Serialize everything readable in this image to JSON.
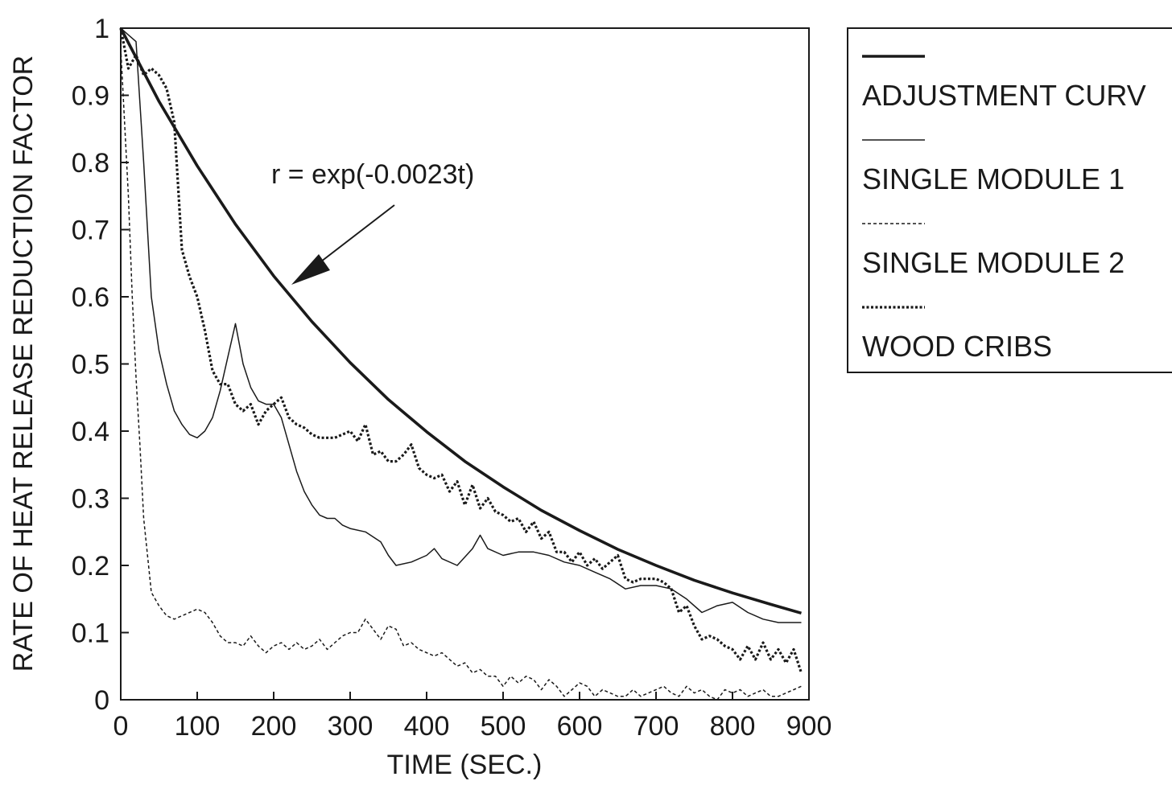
{
  "chart_data": {
    "type": "line",
    "xlabel": "TIME (SEC.)",
    "ylabel": "RATE OF HEAT RELEASE REDUCTION FACTOR",
    "xlim": [
      0,
      900
    ],
    "ylim": [
      0,
      1
    ],
    "x_ticks": [
      "0",
      "100",
      "200",
      "300",
      "400",
      "500",
      "600",
      "700",
      "800",
      "900"
    ],
    "y_ticks": [
      "0",
      "0.1",
      "0.2",
      "0.3",
      "0.4",
      "0.5",
      "0.6",
      "0.7",
      "0.8",
      "0.9",
      "1"
    ],
    "grid": false,
    "legend_position": "right",
    "annotation": "r = exp(-0.0023t)",
    "series": [
      {
        "name": "ADJUSTMENT CURV",
        "style": "thick-solid",
        "formula": "exp(-0.0023t)",
        "x": [
          0,
          50,
          100,
          150,
          200,
          250,
          300,
          350,
          400,
          450,
          500,
          550,
          600,
          650,
          700,
          750,
          800,
          850,
          890
        ],
        "y": [
          1.0,
          0.891,
          0.795,
          0.708,
          0.631,
          0.563,
          0.502,
          0.447,
          0.399,
          0.355,
          0.317,
          0.282,
          0.252,
          0.224,
          0.2,
          0.178,
          0.159,
          0.142,
          0.129
        ]
      },
      {
        "name": "SINGLE MODULE 1",
        "style": "thin-solid",
        "x": [
          0,
          10,
          20,
          30,
          40,
          50,
          60,
          70,
          80,
          90,
          100,
          110,
          120,
          130,
          140,
          150,
          160,
          170,
          180,
          190,
          200,
          210,
          220,
          230,
          240,
          250,
          260,
          270,
          280,
          290,
          300,
          320,
          340,
          350,
          360,
          380,
          400,
          410,
          420,
          440,
          460,
          470,
          480,
          500,
          520,
          540,
          560,
          580,
          600,
          620,
          640,
          660,
          680,
          700,
          720,
          740,
          760,
          780,
          800,
          820,
          840,
          860,
          880,
          890
        ],
        "y": [
          1.0,
          0.99,
          0.98,
          0.8,
          0.6,
          0.52,
          0.47,
          0.43,
          0.41,
          0.395,
          0.39,
          0.4,
          0.42,
          0.46,
          0.51,
          0.56,
          0.5,
          0.465,
          0.445,
          0.44,
          0.44,
          0.42,
          0.38,
          0.34,
          0.31,
          0.29,
          0.275,
          0.27,
          0.27,
          0.26,
          0.255,
          0.25,
          0.235,
          0.215,
          0.2,
          0.205,
          0.215,
          0.225,
          0.21,
          0.2,
          0.225,
          0.245,
          0.225,
          0.215,
          0.22,
          0.22,
          0.215,
          0.205,
          0.2,
          0.19,
          0.18,
          0.165,
          0.17,
          0.17,
          0.165,
          0.15,
          0.13,
          0.14,
          0.145,
          0.13,
          0.12,
          0.115,
          0.115,
          0.115
        ]
      },
      {
        "name": "SINGLE MODULE 2",
        "style": "thin-dashed",
        "x": [
          0,
          10,
          15,
          20,
          25,
          30,
          40,
          50,
          60,
          70,
          80,
          90,
          100,
          110,
          120,
          130,
          140,
          150,
          160,
          170,
          180,
          190,
          200,
          210,
          220,
          230,
          240,
          250,
          260,
          270,
          280,
          290,
          300,
          310,
          320,
          330,
          340,
          350,
          360,
          370,
          380,
          390,
          400,
          410,
          420,
          430,
          440,
          450,
          460,
          470,
          480,
          490,
          500,
          510,
          520,
          530,
          540,
          550,
          560,
          570,
          580,
          590,
          600,
          610,
          620,
          630,
          640,
          650,
          660,
          670,
          680,
          690,
          700,
          710,
          720,
          730,
          740,
          750,
          760,
          770,
          780,
          790,
          800,
          810,
          820,
          830,
          840,
          850,
          860,
          870,
          880,
          890
        ],
        "y": [
          0.97,
          0.75,
          0.6,
          0.48,
          0.38,
          0.27,
          0.16,
          0.14,
          0.125,
          0.12,
          0.125,
          0.13,
          0.135,
          0.13,
          0.115,
          0.095,
          0.085,
          0.085,
          0.08,
          0.095,
          0.08,
          0.07,
          0.08,
          0.085,
          0.075,
          0.085,
          0.075,
          0.08,
          0.09,
          0.075,
          0.085,
          0.095,
          0.1,
          0.1,
          0.12,
          0.105,
          0.09,
          0.11,
          0.105,
          0.08,
          0.085,
          0.075,
          0.07,
          0.065,
          0.07,
          0.06,
          0.05,
          0.055,
          0.04,
          0.045,
          0.035,
          0.035,
          0.02,
          0.035,
          0.025,
          0.035,
          0.03,
          0.015,
          0.03,
          0.02,
          0.005,
          0.015,
          0.025,
          0.02,
          0.005,
          0.015,
          0.01,
          0.005,
          0.005,
          0.015,
          0.005,
          0.01,
          0.015,
          0.02,
          0.01,
          0.005,
          0.02,
          0.01,
          0.015,
          0.005,
          0.0,
          0.015,
          0.01,
          0.015,
          0.005,
          0.01,
          0.015,
          0.005,
          0.005,
          0.01,
          0.015,
          0.02
        ]
      },
      {
        "name": "WOOD CRIBS",
        "style": "thick-dotted",
        "x": [
          0,
          10,
          20,
          30,
          40,
          50,
          60,
          70,
          80,
          90,
          100,
          110,
          120,
          130,
          140,
          150,
          160,
          170,
          180,
          190,
          200,
          210,
          220,
          230,
          240,
          250,
          260,
          270,
          280,
          290,
          300,
          310,
          320,
          330,
          340,
          350,
          360,
          370,
          380,
          390,
          400,
          410,
          420,
          430,
          440,
          450,
          460,
          470,
          480,
          490,
          500,
          510,
          520,
          530,
          540,
          550,
          560,
          570,
          580,
          590,
          600,
          610,
          620,
          630,
          640,
          650,
          660,
          670,
          680,
          690,
          700,
          710,
          720,
          730,
          740,
          750,
          760,
          770,
          780,
          790,
          800,
          810,
          820,
          830,
          840,
          850,
          860,
          870,
          880,
          890
        ],
        "y": [
          1.0,
          0.94,
          0.96,
          0.93,
          0.94,
          0.93,
          0.91,
          0.86,
          0.67,
          0.63,
          0.6,
          0.55,
          0.49,
          0.47,
          0.47,
          0.44,
          0.43,
          0.44,
          0.41,
          0.43,
          0.44,
          0.45,
          0.42,
          0.41,
          0.405,
          0.395,
          0.39,
          0.39,
          0.39,
          0.395,
          0.4,
          0.385,
          0.41,
          0.365,
          0.37,
          0.355,
          0.355,
          0.365,
          0.38,
          0.345,
          0.335,
          0.33,
          0.335,
          0.31,
          0.325,
          0.29,
          0.32,
          0.285,
          0.3,
          0.28,
          0.275,
          0.265,
          0.27,
          0.25,
          0.265,
          0.24,
          0.25,
          0.22,
          0.22,
          0.205,
          0.22,
          0.2,
          0.21,
          0.195,
          0.205,
          0.215,
          0.18,
          0.175,
          0.18,
          0.18,
          0.18,
          0.175,
          0.165,
          0.13,
          0.14,
          0.11,
          0.09,
          0.095,
          0.09,
          0.08,
          0.075,
          0.06,
          0.08,
          0.06,
          0.085,
          0.06,
          0.075,
          0.055,
          0.075,
          0.04
        ]
      }
    ]
  }
}
